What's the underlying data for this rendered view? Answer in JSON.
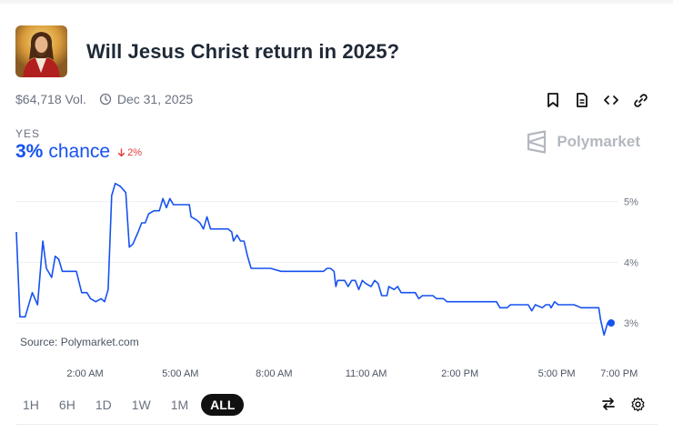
{
  "market": {
    "title": "Will Jesus Christ return in 2025?",
    "volume": "$64,718 Vol.",
    "end_date": "Dec 31, 2025",
    "outcome": "YES",
    "chance_value": "3%",
    "chance_word": "chance",
    "change": "2%",
    "brand": "Polymarket",
    "source": "Source: Polymarket.com"
  },
  "actions": [
    {
      "name": "bookmark-icon"
    },
    {
      "name": "document-icon"
    },
    {
      "name": "embed-code-icon"
    },
    {
      "name": "link-icon"
    }
  ],
  "ranges": [
    {
      "label": "1H",
      "active": false
    },
    {
      "label": "6H",
      "active": false
    },
    {
      "label": "1D",
      "active": false
    },
    {
      "label": "1W",
      "active": false
    },
    {
      "label": "1M",
      "active": false
    },
    {
      "label": "ALL",
      "active": true
    }
  ],
  "colors": {
    "accent": "#1652f0",
    "negative": "#e23b3b",
    "brand": "#b3b8bf"
  },
  "chart_data": {
    "type": "line",
    "x_ticks": [
      "2:00 AM",
      "5:00 AM",
      "8:00 AM",
      "11:00 AM",
      "2:00 PM",
      "5:00 PM",
      "7:00 PM"
    ],
    "y_ticks": [
      "3%",
      "4%",
      "5%"
    ],
    "ylim": [
      2.4,
      5.4
    ],
    "grid": true,
    "series": [
      {
        "values": [
          [
            0.0,
            4.5
          ],
          [
            0.1,
            3.1
          ],
          [
            0.25,
            3.1
          ],
          [
            0.45,
            3.5
          ],
          [
            0.6,
            3.3
          ],
          [
            0.75,
            4.35
          ],
          [
            0.85,
            3.9
          ],
          [
            1.0,
            3.75
          ],
          [
            1.1,
            4.1
          ],
          [
            1.2,
            4.05
          ],
          [
            1.3,
            3.85
          ],
          [
            1.5,
            3.85
          ],
          [
            1.7,
            3.85
          ],
          [
            1.85,
            3.5
          ],
          [
            2.0,
            3.5
          ],
          [
            2.1,
            3.4
          ],
          [
            2.25,
            3.35
          ],
          [
            2.4,
            3.4
          ],
          [
            2.5,
            3.35
          ],
          [
            2.6,
            3.55
          ],
          [
            2.7,
            5.1
          ],
          [
            2.8,
            5.3
          ],
          [
            2.95,
            5.25
          ],
          [
            3.1,
            5.15
          ],
          [
            3.2,
            4.25
          ],
          [
            3.3,
            4.3
          ],
          [
            3.45,
            4.5
          ],
          [
            3.55,
            4.65
          ],
          [
            3.65,
            4.65
          ],
          [
            3.75,
            4.8
          ],
          [
            3.9,
            4.85
          ],
          [
            4.05,
            4.85
          ],
          [
            4.15,
            5.05
          ],
          [
            4.25,
            4.9
          ],
          [
            4.35,
            5.05
          ],
          [
            4.45,
            4.95
          ],
          [
            4.6,
            4.95
          ],
          [
            4.9,
            4.95
          ],
          [
            4.95,
            4.75
          ],
          [
            5.1,
            4.7
          ],
          [
            5.2,
            4.65
          ],
          [
            5.3,
            4.55
          ],
          [
            5.4,
            4.75
          ],
          [
            5.5,
            4.55
          ],
          [
            5.7,
            4.55
          ],
          [
            6.0,
            4.55
          ],
          [
            6.1,
            4.5
          ],
          [
            6.15,
            4.35
          ],
          [
            6.25,
            4.45
          ],
          [
            6.35,
            4.35
          ],
          [
            6.45,
            4.35
          ],
          [
            6.55,
            4.1
          ],
          [
            6.65,
            3.9
          ],
          [
            6.9,
            3.9
          ],
          [
            7.2,
            3.9
          ],
          [
            7.5,
            3.85
          ],
          [
            7.9,
            3.85
          ],
          [
            8.4,
            3.85
          ],
          [
            8.7,
            3.85
          ],
          [
            8.8,
            3.9
          ],
          [
            8.9,
            3.9
          ],
          [
            9.0,
            3.85
          ],
          [
            9.05,
            3.6
          ],
          [
            9.1,
            3.7
          ],
          [
            9.3,
            3.7
          ],
          [
            9.4,
            3.6
          ],
          [
            9.5,
            3.7
          ],
          [
            9.6,
            3.7
          ],
          [
            9.7,
            3.55
          ],
          [
            9.8,
            3.7
          ],
          [
            9.9,
            3.65
          ],
          [
            10.05,
            3.6
          ],
          [
            10.15,
            3.7
          ],
          [
            10.25,
            3.65
          ],
          [
            10.35,
            3.45
          ],
          [
            10.5,
            3.45
          ],
          [
            10.55,
            3.6
          ],
          [
            10.7,
            3.55
          ],
          [
            10.8,
            3.6
          ],
          [
            10.9,
            3.5
          ],
          [
            11.0,
            3.5
          ],
          [
            11.3,
            3.5
          ],
          [
            11.4,
            3.4
          ],
          [
            11.5,
            3.45
          ],
          [
            11.8,
            3.45
          ],
          [
            11.9,
            3.4
          ],
          [
            12.1,
            3.4
          ],
          [
            12.2,
            3.35
          ],
          [
            12.4,
            3.35
          ],
          [
            13.0,
            3.35
          ],
          [
            13.6,
            3.35
          ],
          [
            13.7,
            3.25
          ],
          [
            13.9,
            3.25
          ],
          [
            14.0,
            3.3
          ],
          [
            14.3,
            3.3
          ],
          [
            14.5,
            3.3
          ],
          [
            14.6,
            3.2
          ],
          [
            14.7,
            3.3
          ],
          [
            14.9,
            3.25
          ],
          [
            15.0,
            3.3
          ],
          [
            15.1,
            3.3
          ],
          [
            15.15,
            3.25
          ],
          [
            15.25,
            3.35
          ],
          [
            15.35,
            3.3
          ],
          [
            15.8,
            3.3
          ],
          [
            16.0,
            3.25
          ],
          [
            16.4,
            3.25
          ],
          [
            16.5,
            3.25
          ],
          [
            16.55,
            3.05
          ],
          [
            16.65,
            2.8
          ],
          [
            16.75,
            3.0
          ],
          [
            16.85,
            3.0
          ]
        ]
      }
    ]
  }
}
